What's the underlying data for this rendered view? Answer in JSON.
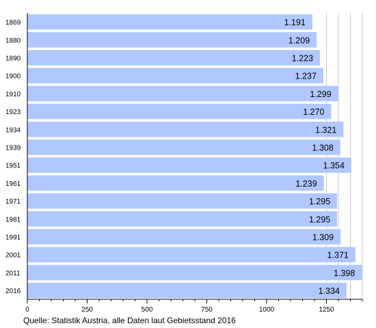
{
  "chart_data": {
    "type": "bar",
    "orientation": "horizontal",
    "categories": [
      "1869",
      "1880",
      "1890",
      "1900",
      "1910",
      "1923",
      "1934",
      "1939",
      "1951",
      "1961",
      "1971",
      "1981",
      "1991",
      "2001",
      "2011",
      "2016"
    ],
    "values": [
      1191,
      1209,
      1223,
      1237,
      1299,
      1270,
      1321,
      1308,
      1354,
      1239,
      1295,
      1295,
      1309,
      1371,
      1398,
      1334
    ],
    "value_labels": [
      "1.191",
      "1.209",
      "1.223",
      "1.237",
      "1.299",
      "1.270",
      "1.321",
      "1.308",
      "1.354",
      "1.239",
      "1.295",
      "1.295",
      "1.309",
      "1.371",
      "1.398",
      "1.334"
    ],
    "xlim": [
      0,
      1400
    ],
    "xticks": [
      0,
      250,
      500,
      750,
      1000,
      1250
    ],
    "xtick_labels": [
      "0",
      "250",
      "500",
      "750",
      "1000",
      "1250"
    ],
    "minor_tick_step": 50,
    "grid": "vertical lines from 1250 upward",
    "title": "",
    "xlabel": "",
    "ylabel": "",
    "colors": {
      "bar": "#b0c8ff",
      "grid": "#c8c8c8",
      "axis": "#000000",
      "text": "#000000"
    }
  },
  "source_note": "Quelle: Statistik Austria, alle Daten laut Gebietsstand 2016"
}
